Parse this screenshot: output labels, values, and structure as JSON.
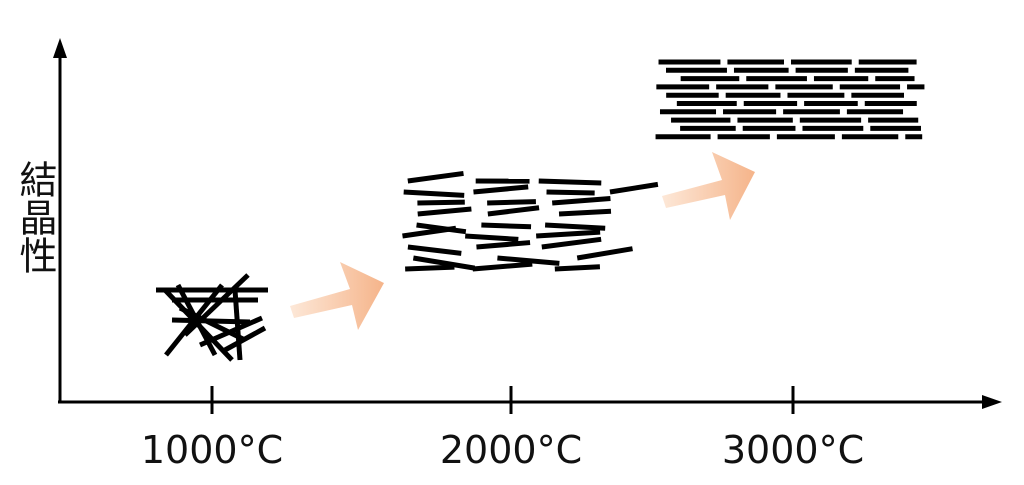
{
  "axis": {
    "y_label": "結晶性"
  },
  "stages": [
    {
      "label": "1000°C"
    },
    {
      "label": "2000°C"
    },
    {
      "label": "3000°C"
    }
  ]
}
